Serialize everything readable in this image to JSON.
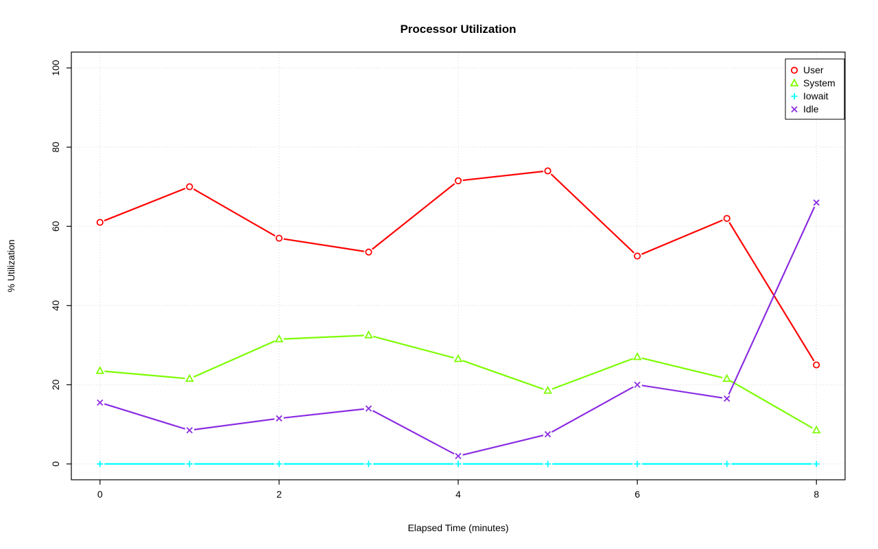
{
  "chart_data": {
    "type": "line",
    "title": "Processor Utilization",
    "xlabel": "Elapsed Time (minutes)",
    "ylabel": "% Utilization",
    "xlim": [
      0,
      8
    ],
    "ylim": [
      0,
      100
    ],
    "xticks": [
      0,
      2,
      4,
      6,
      8
    ],
    "yticks": [
      0,
      20,
      40,
      60,
      80,
      100
    ],
    "grid": true,
    "legend_position": "top-right",
    "x": [
      0,
      1,
      2,
      3,
      4,
      5,
      6,
      7,
      8
    ],
    "series": [
      {
        "name": "User",
        "color": "#FF0000",
        "symbol": "circle",
        "values": [
          61,
          70,
          57,
          53.5,
          71.5,
          74,
          52.5,
          62,
          25
        ]
      },
      {
        "name": "System",
        "color": "#7CFC00",
        "symbol": "triangle",
        "values": [
          23.5,
          21.5,
          31.5,
          32.5,
          26.5,
          18.5,
          27,
          21.5,
          8.5
        ]
      },
      {
        "name": "Iowait",
        "color": "#00FFFF",
        "symbol": "plus",
        "values": [
          0,
          0,
          0,
          0,
          0,
          0,
          0,
          0,
          0
        ]
      },
      {
        "name": "Idle",
        "color": "#8A2BE2",
        "symbol": "x",
        "values": [
          15.5,
          8.5,
          11.5,
          14,
          2,
          7.5,
          20,
          16.5,
          66
        ]
      }
    ],
    "colors": {
      "grid": "#D3D3D3",
      "axis": "#000000",
      "background": "#FFFFFF"
    }
  }
}
